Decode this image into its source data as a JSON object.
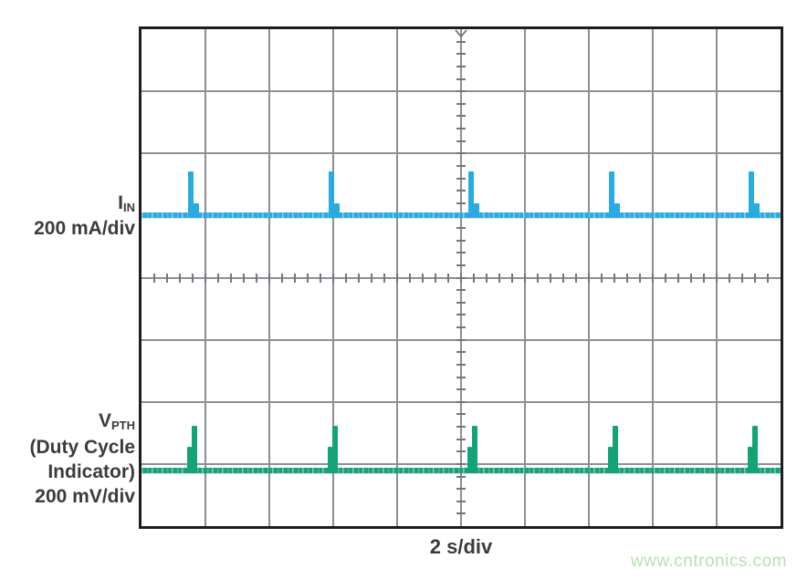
{
  "figure": {
    "watermark": {
      "text": "www.cntronics.com",
      "color": "#b9e0b3"
    }
  },
  "labels": {
    "ch1_symbol": "I",
    "ch1_sub": "IN",
    "ch1_scale": "200 mA/div",
    "ch2_symbol": "V",
    "ch2_sub": "PTH",
    "ch2_note1": "(Duty Cycle",
    "ch2_note2": "Indicator)",
    "ch2_scale": "200 mV/div",
    "time_scale": "2 s/div"
  },
  "chart_data": {
    "type": "line",
    "subtype": "oscilloscope-screenshot",
    "title": "",
    "x_axis": {
      "label": "2 s/div",
      "seconds_per_div": 2,
      "divisions": 10,
      "minor_ticks_per_div": 5
    },
    "y_axis": {
      "divisions": 8,
      "minor_ticks_per_div": 5
    },
    "grid": {
      "line_color": "#8e8e96",
      "tick_color": "#75757d",
      "border_color": "#1d1d1f",
      "trigger_marker": "top-center"
    },
    "series": [
      {
        "name": "IIN",
        "scale": "200 mA/div",
        "color": "#29abe2",
        "baseline_div_from_top": 3.0,
        "pulse_amplitude_div": 0.7,
        "pulse_amplitude_approx": "140 mA",
        "shoulder_amplitude_div": 0.19,
        "shoulder_side": "right",
        "pulse_period_s": 4.4,
        "pulse_times_s": [
          -8.46,
          -4.06,
          0.31,
          4.71,
          9.09
        ]
      },
      {
        "name": "VPTH (Duty Cycle Indicator)",
        "scale": "200 mV/div",
        "color": "#12a377",
        "baseline_div_from_top": 7.1,
        "pulse_amplitude_div": 0.72,
        "pulse_amplitude_approx": "145 mV",
        "shoulder_amplitude_div": 0.38,
        "shoulder_side": "left",
        "pulse_period_s": 4.4,
        "pulse_times_s": [
          -8.35,
          -3.95,
          0.43,
          4.83,
          9.2
        ]
      }
    ]
  }
}
